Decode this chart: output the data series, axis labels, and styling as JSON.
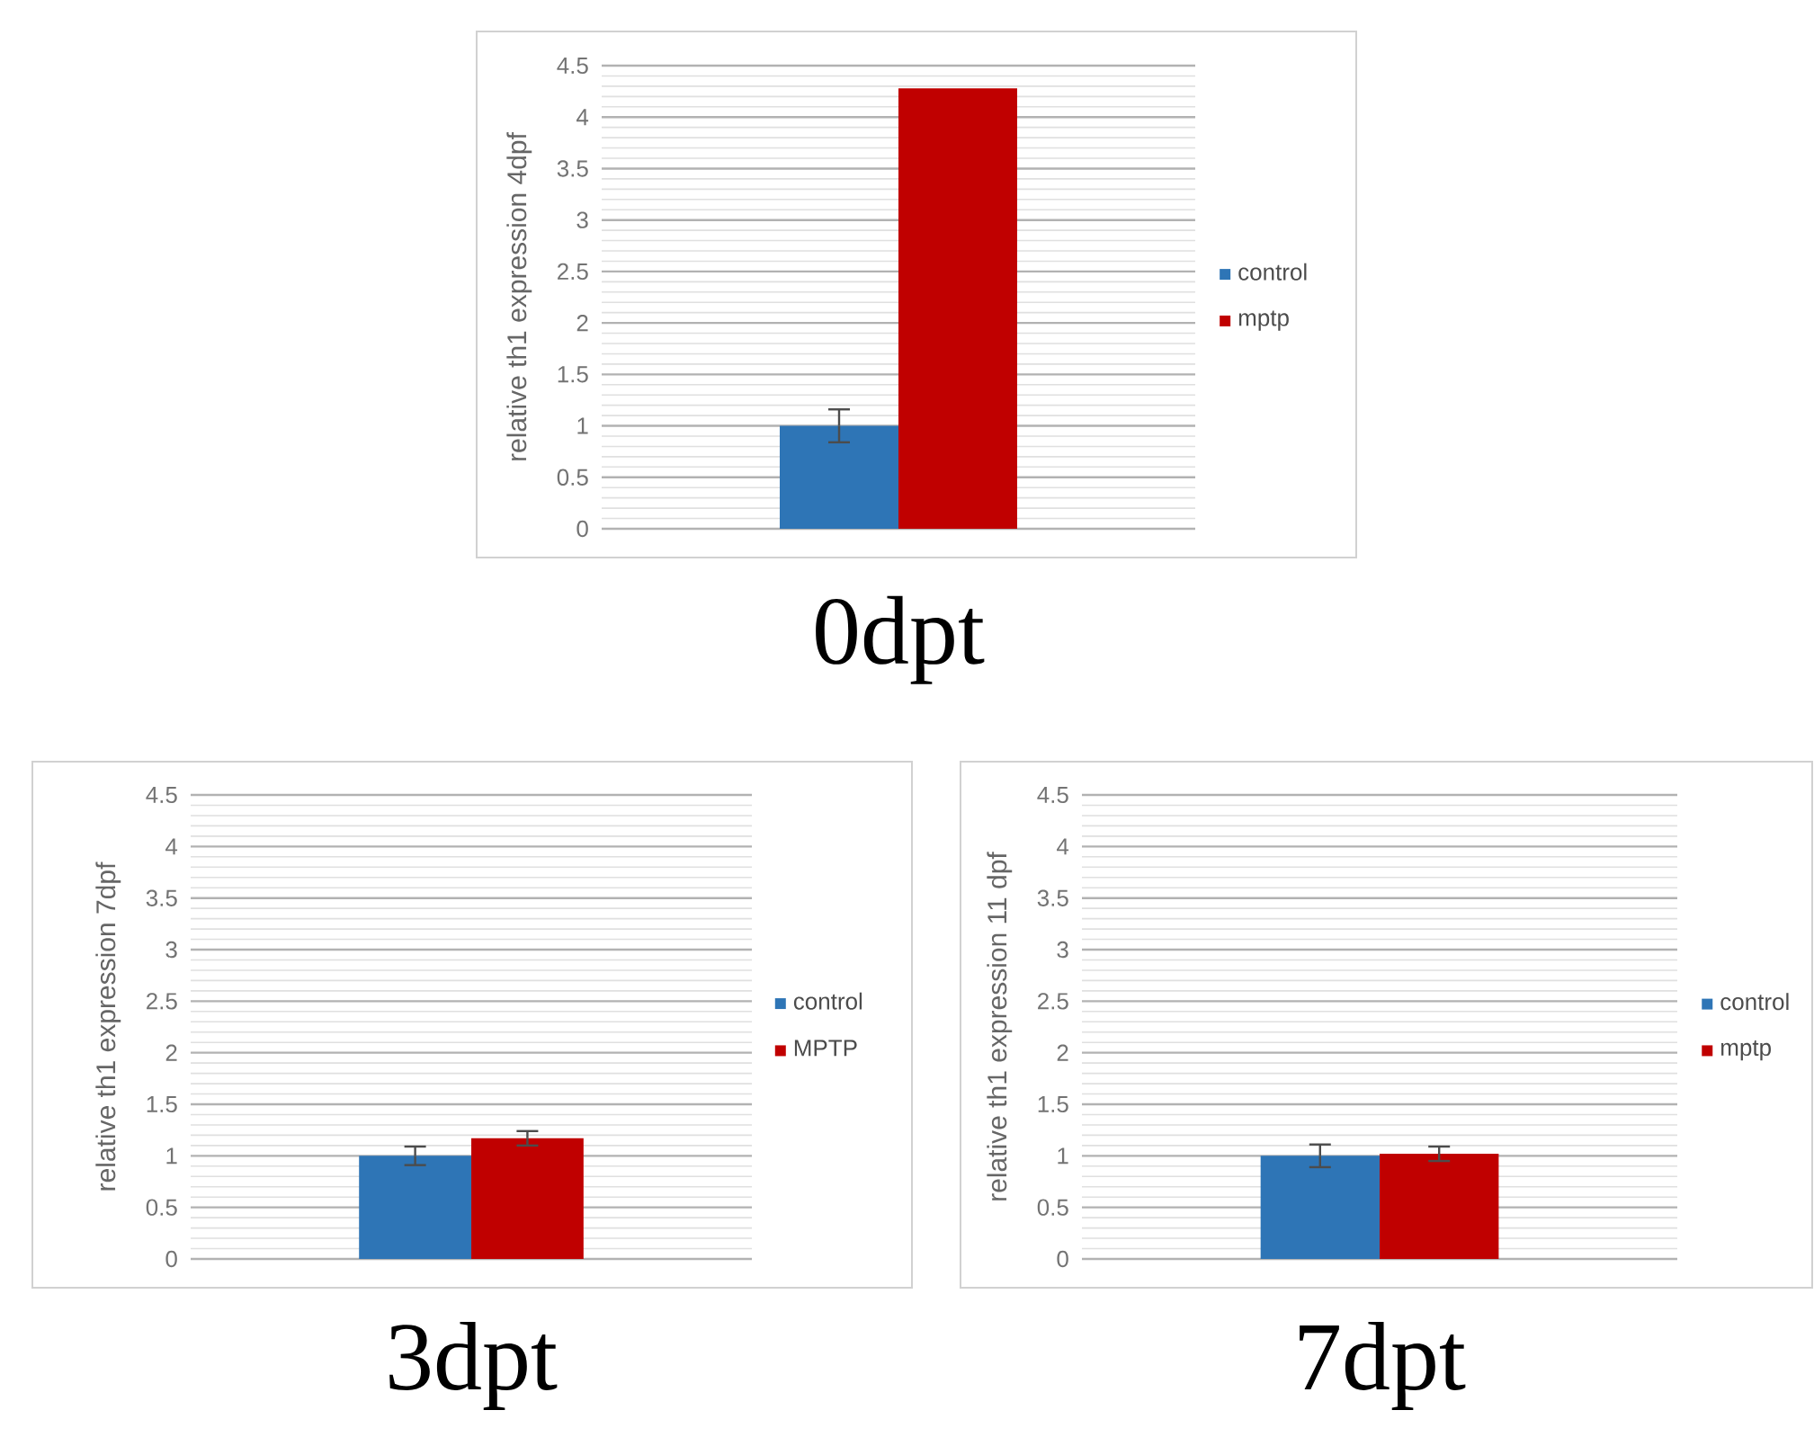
{
  "chart_data": [
    {
      "type": "bar",
      "title": "0dpt",
      "ylabel": "relative th1 expression 4dpf",
      "categories": [
        null
      ],
      "series": [
        {
          "name": "control",
          "color": "#2e75b6",
          "values": [
            1
          ],
          "errors": [
            0.16
          ]
        },
        {
          "name": "mptp",
          "color": "#c00000",
          "values": [
            4.28
          ]
        }
      ],
      "ylim": [
        0,
        4.5
      ],
      "yticks": [
        0,
        0.5,
        1,
        1.5,
        2,
        2.5,
        3,
        3.5,
        4,
        4.5
      ],
      "grid": "y",
      "legend": "right"
    },
    {
      "type": "bar",
      "title": "3dpt",
      "ylabel": "relative th1 expression 7dpf",
      "categories": [
        null
      ],
      "series": [
        {
          "name": "control",
          "color": "#2e75b6",
          "values": [
            1
          ],
          "errors": [
            0.09
          ]
        },
        {
          "name": "MPTP",
          "color": "#c00000",
          "values": [
            1.17
          ],
          "errors": [
            0.07
          ]
        }
      ],
      "ylim": [
        0,
        4.5
      ],
      "yticks": [
        0,
        0.5,
        1,
        1.5,
        2,
        2.5,
        3,
        3.5,
        4,
        4.5
      ],
      "grid": "y",
      "legend": "right"
    },
    {
      "type": "bar",
      "title": "7dpt",
      "ylabel": "relative th1 expression 11 dpf",
      "categories": [
        null
      ],
      "series": [
        {
          "name": "control",
          "color": "#2e75b6",
          "values": [
            1
          ],
          "errors": [
            0.11
          ]
        },
        {
          "name": "mptp",
          "color": "#c00000",
          "values": [
            1.02
          ],
          "errors": [
            0.07
          ]
        }
      ],
      "ylim": [
        0,
        4.5
      ],
      "yticks": [
        0,
        0.5,
        1,
        1.5,
        2,
        2.5,
        3,
        3.5,
        4,
        4.5
      ],
      "grid": "y",
      "legend": "right"
    }
  ]
}
